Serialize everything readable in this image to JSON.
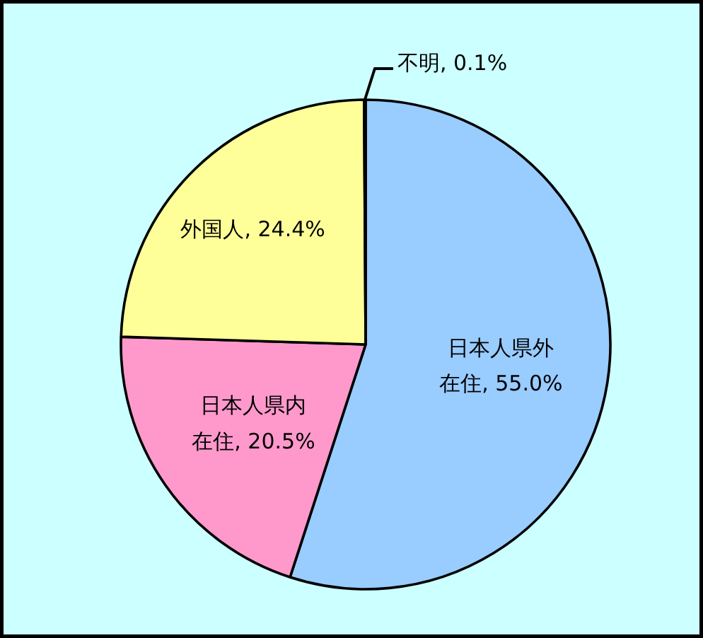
{
  "chart_data": {
    "type": "pie",
    "categories": [
      "日本人県外在住",
      "日本人県内在住",
      "外国人",
      "不明"
    ],
    "values": [
      55.0,
      20.5,
      24.4,
      0.1
    ],
    "colors": [
      "#99ccff",
      "#ff99cc",
      "#ffff99",
      "#ffffff"
    ],
    "value_labels": [
      "55.0%",
      "20.5%",
      "24.4%",
      "0.1%"
    ]
  }
}
